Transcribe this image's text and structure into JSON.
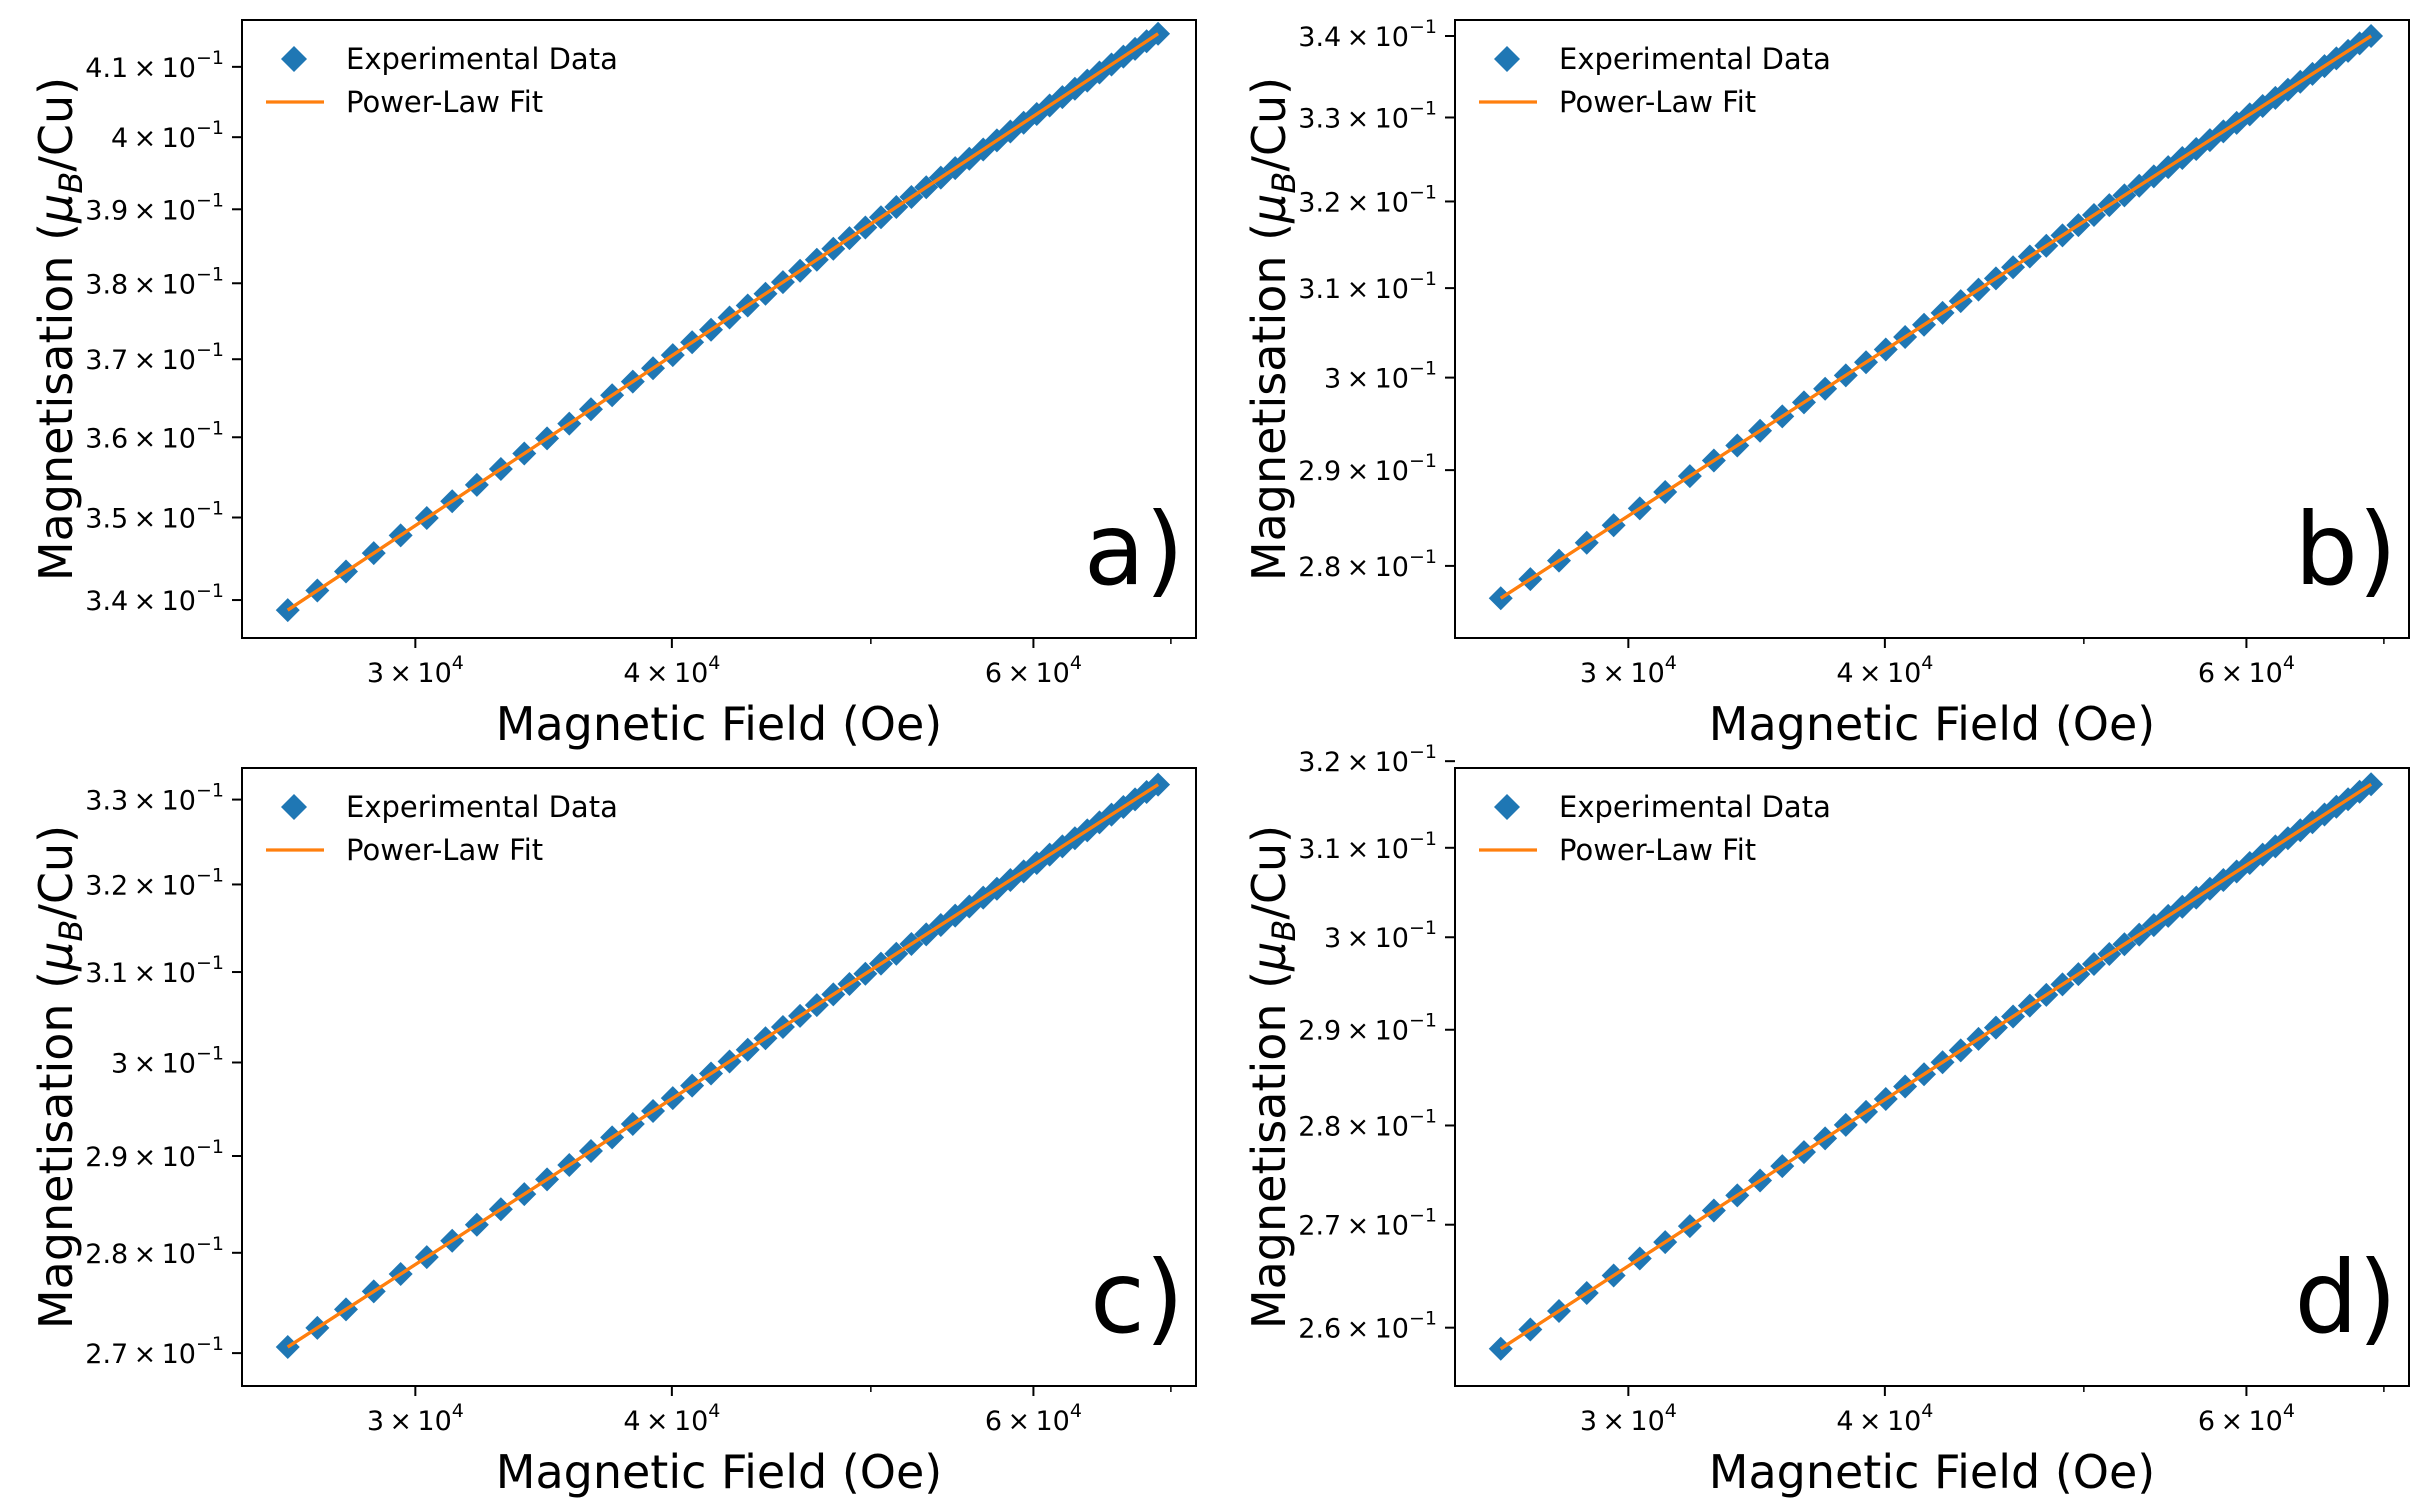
{
  "chart_data": [
    {
      "type": "scatter",
      "panel_label": "a)",
      "xlabel": "Magnetic Field (Oe)",
      "ylabel_prefix": "Magnetisation (",
      "ylabel_mu": "μ",
      "ylabel_sub": "B",
      "ylabel_suffix": "/Cu)",
      "xscale": "log",
      "yscale": "log",
      "xlim": [
        24700,
        72000
      ],
      "ylim": [
        0.3355,
        0.4168
      ],
      "x_ticks": [
        {
          "value": 30000,
          "mant": "3",
          "exp": "4"
        },
        {
          "value": 40000,
          "mant": "4",
          "exp": "4"
        },
        {
          "value": 60000,
          "mant": "6",
          "exp": "4"
        }
      ],
      "y_ticks": [
        {
          "value": 0.34,
          "mant": "3.4",
          "exp": "−1"
        },
        {
          "value": 0.35,
          "mant": "3.5",
          "exp": "−1"
        },
        {
          "value": 0.36,
          "mant": "3.6",
          "exp": "−1"
        },
        {
          "value": 0.37,
          "mant": "3.7",
          "exp": "−1"
        },
        {
          "value": 0.38,
          "mant": "3.8",
          "exp": "−1"
        },
        {
          "value": 0.39,
          "mant": "3.9",
          "exp": "−1"
        },
        {
          "value": 0.4,
          "mant": "4",
          "exp": "−1"
        },
        {
          "value": 0.41,
          "mant": "4.1",
          "exp": "−1"
        }
      ],
      "series": [
        {
          "name": "Experimental Data",
          "kind": "scatter",
          "marker": "diamond",
          "color": "#1f77b4",
          "x_start": 26000,
          "x_end": 69000,
          "n_points": 50,
          "y_start": 0.3388,
          "y_end": 0.4148
        },
        {
          "name": "Power-Law Fit",
          "kind": "line",
          "color": "#ff7f0e",
          "x_start": 26000,
          "x_end": 69000,
          "y_start": 0.3388,
          "y_end": 0.4148
        }
      ],
      "legend_position": "upper left"
    },
    {
      "type": "scatter",
      "panel_label": "b)",
      "xlabel": "Magnetic Field (Oe)",
      "ylabel_prefix": "Magnetisation (",
      "ylabel_mu": "μ",
      "ylabel_sub": "B",
      "ylabel_suffix": "/Cu)",
      "xscale": "log",
      "yscale": "log",
      "xlim": [
        24700,
        72000
      ],
      "ylim": [
        0.2727,
        0.342
      ],
      "x_ticks": [
        {
          "value": 30000,
          "mant": "3",
          "exp": "4"
        },
        {
          "value": 40000,
          "mant": "4",
          "exp": "4"
        },
        {
          "value": 60000,
          "mant": "6",
          "exp": "4"
        }
      ],
      "y_ticks": [
        {
          "value": 0.28,
          "mant": "2.8",
          "exp": "−1"
        },
        {
          "value": 0.29,
          "mant": "2.9",
          "exp": "−1"
        },
        {
          "value": 0.3,
          "mant": "3",
          "exp": "−1"
        },
        {
          "value": 0.31,
          "mant": "3.1",
          "exp": "−1"
        },
        {
          "value": 0.32,
          "mant": "3.2",
          "exp": "−1"
        },
        {
          "value": 0.33,
          "mant": "3.3",
          "exp": "−1"
        },
        {
          "value": 0.34,
          "mant": "3.4",
          "exp": "−1"
        }
      ],
      "series": [
        {
          "name": "Experimental Data",
          "kind": "scatter",
          "marker": "diamond",
          "color": "#1f77b4",
          "x_start": 26000,
          "x_end": 69000,
          "n_points": 50,
          "y_start": 0.2767,
          "y_end": 0.34
        },
        {
          "name": "Power-Law Fit",
          "kind": "line",
          "color": "#ff7f0e",
          "x_start": 26000,
          "x_end": 69000,
          "y_start": 0.2767,
          "y_end": 0.34
        }
      ],
      "legend_position": "upper left"
    },
    {
      "type": "scatter",
      "panel_label": "c)",
      "xlabel": "Magnetic Field (Oe)",
      "ylabel_prefix": "Magnetisation (",
      "ylabel_mu": "μ",
      "ylabel_sub": "B",
      "ylabel_suffix": "/Cu)",
      "xscale": "log",
      "yscale": "log",
      "xlim": [
        24700,
        72000
      ],
      "ylim": [
        0.2668,
        0.3338
      ],
      "x_ticks": [
        {
          "value": 30000,
          "mant": "3",
          "exp": "4"
        },
        {
          "value": 40000,
          "mant": "4",
          "exp": "4"
        },
        {
          "value": 60000,
          "mant": "6",
          "exp": "4"
        }
      ],
      "y_ticks": [
        {
          "value": 0.27,
          "mant": "2.7",
          "exp": "−1"
        },
        {
          "value": 0.28,
          "mant": "2.8",
          "exp": "−1"
        },
        {
          "value": 0.29,
          "mant": "2.9",
          "exp": "−1"
        },
        {
          "value": 0.3,
          "mant": "3",
          "exp": "−1"
        },
        {
          "value": 0.31,
          "mant": "3.1",
          "exp": "−1"
        },
        {
          "value": 0.32,
          "mant": "3.2",
          "exp": "−1"
        },
        {
          "value": 0.33,
          "mant": "3.3",
          "exp": "−1"
        }
      ],
      "series": [
        {
          "name": "Experimental Data",
          "kind": "scatter",
          "marker": "diamond",
          "color": "#1f77b4",
          "x_start": 26000,
          "x_end": 69000,
          "n_points": 50,
          "y_start": 0.2706,
          "y_end": 0.3318
        },
        {
          "name": "Power-Law Fit",
          "kind": "line",
          "color": "#ff7f0e",
          "x_start": 26000,
          "x_end": 69000,
          "y_start": 0.2706,
          "y_end": 0.3318
        }
      ],
      "legend_position": "upper left"
    },
    {
      "type": "scatter",
      "panel_label": "d)",
      "xlabel": "Magnetic Field (Oe)",
      "ylabel_prefix": "Magnetisation (",
      "ylabel_mu": "μ",
      "ylabel_sub": "B",
      "ylabel_suffix": "/Cu)",
      "xscale": "log",
      "yscale": "log",
      "xlim": [
        24700,
        72000
      ],
      "ylim": [
        0.2545,
        0.3192
      ],
      "x_ticks": [
        {
          "value": 30000,
          "mant": "3",
          "exp": "4"
        },
        {
          "value": 40000,
          "mant": "4",
          "exp": "4"
        },
        {
          "value": 60000,
          "mant": "6",
          "exp": "4"
        }
      ],
      "y_ticks": [
        {
          "value": 0.26,
          "mant": "2.6",
          "exp": "−1"
        },
        {
          "value": 0.27,
          "mant": "2.7",
          "exp": "−1"
        },
        {
          "value": 0.28,
          "mant": "2.8",
          "exp": "−1"
        },
        {
          "value": 0.29,
          "mant": "2.9",
          "exp": "−1"
        },
        {
          "value": 0.3,
          "mant": "3",
          "exp": "−1"
        },
        {
          "value": 0.31,
          "mant": "3.1",
          "exp": "−1"
        },
        {
          "value": 0.32,
          "mant": "3.2",
          "exp": "−1"
        }
      ],
      "series": [
        {
          "name": "Experimental Data",
          "kind": "scatter",
          "marker": "diamond",
          "color": "#1f77b4",
          "x_start": 26000,
          "x_end": 69000,
          "n_points": 50,
          "y_start": 0.258,
          "y_end": 0.3173
        },
        {
          "name": "Power-Law Fit",
          "kind": "line",
          "color": "#ff7f0e",
          "x_start": 26000,
          "x_end": 69000,
          "y_start": 0.258,
          "y_end": 0.3173
        }
      ],
      "legend_position": "upper left"
    }
  ]
}
